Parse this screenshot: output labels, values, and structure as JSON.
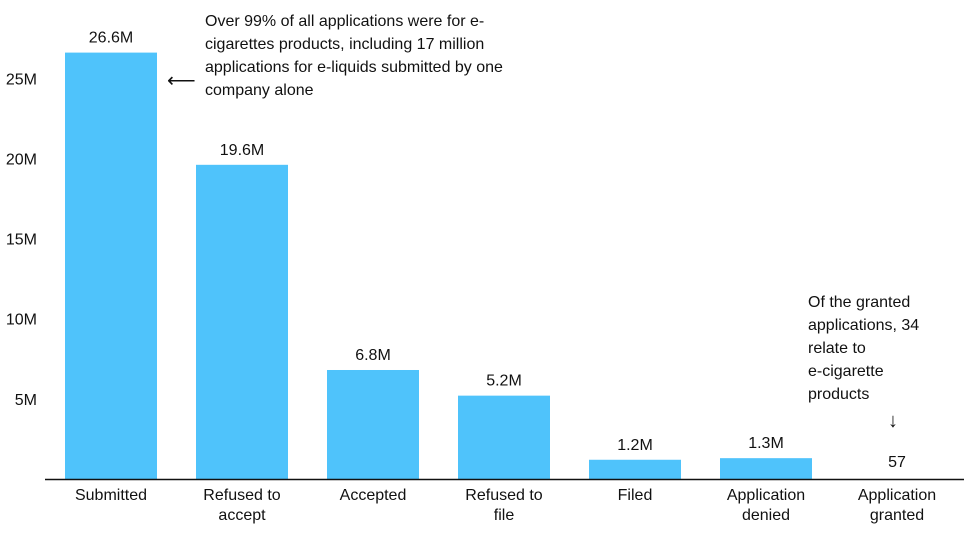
{
  "chart_data": {
    "type": "bar",
    "title": "",
    "xlabel": "",
    "ylabel": "",
    "categories": [
      [
        "Submitted"
      ],
      [
        "Refused to",
        "accept"
      ],
      [
        "Accepted"
      ],
      [
        "Refused to",
        "file"
      ],
      [
        "Filed"
      ],
      [
        "Application",
        "denied"
      ],
      [
        "Application",
        "granted"
      ]
    ],
    "values": [
      26600000,
      19600000,
      6800000,
      5200000,
      1200000,
      1300000,
      57
    ],
    "value_labels": [
      "26.6M",
      "19.6M",
      "6.8M",
      "5.2M",
      "1.2M",
      "1.3M",
      "57"
    ],
    "yticks": [
      5000000,
      10000000,
      15000000,
      20000000,
      25000000
    ],
    "ytick_labels": [
      "5M",
      "10M",
      "15M",
      "20M",
      "25M"
    ],
    "ylim": [
      0,
      28000000
    ],
    "grid": false,
    "colors": {
      "bar": "#4fc3fb",
      "axis": "#111111"
    }
  },
  "annotations": {
    "submitted_note": "Over 99% of all applications were for e-cigarettes products, including 17 million applications for e-liquids submitted by one company alone",
    "granted_note_lines": [
      "Of the granted",
      "applications, 34",
      "relate to",
      "e-cigarette",
      "products"
    ],
    "left_arrow": "⟵",
    "down_arrow": "↓"
  }
}
